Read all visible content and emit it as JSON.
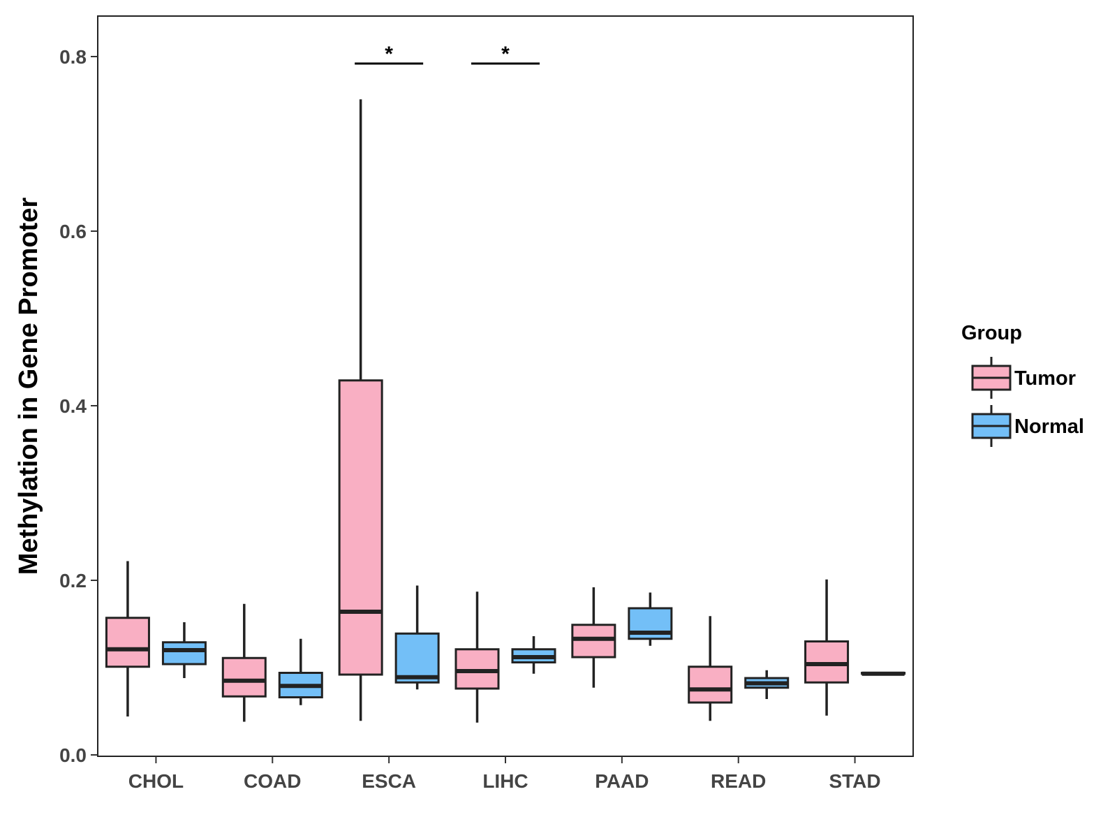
{
  "chart_data": {
    "type": "boxplot",
    "ylabel": "Methylation in Gene Promoter",
    "xlabel": "",
    "ylim": [
      0,
      0.85
    ],
    "yticks": [
      0.0,
      0.2,
      0.4,
      0.6,
      0.8
    ],
    "ytick_labels": [
      "0.0",
      "0.2",
      "0.4",
      "0.6",
      "0.8"
    ],
    "categories": [
      "CHOL",
      "COAD",
      "ESCA",
      "LIHC",
      "PAAD",
      "READ",
      "STAD"
    ],
    "legend": {
      "title": "Group",
      "position": "right"
    },
    "series": [
      {
        "name": "Tumor",
        "color": "#F9AFC3",
        "boxes": [
          {
            "min": 0.044,
            "q1": 0.101,
            "median": 0.121,
            "q3": 0.157,
            "max": 0.222
          },
          {
            "min": 0.038,
            "q1": 0.067,
            "median": 0.085,
            "q3": 0.111,
            "max": 0.173
          },
          {
            "min": 0.039,
            "q1": 0.092,
            "median": 0.164,
            "q3": 0.429,
            "max": 0.751
          },
          {
            "min": 0.037,
            "q1": 0.076,
            "median": 0.096,
            "q3": 0.121,
            "max": 0.187
          },
          {
            "min": 0.077,
            "q1": 0.112,
            "median": 0.133,
            "q3": 0.149,
            "max": 0.192
          },
          {
            "min": 0.039,
            "q1": 0.06,
            "median": 0.075,
            "q3": 0.101,
            "max": 0.159
          },
          {
            "min": 0.045,
            "q1": 0.083,
            "median": 0.104,
            "q3": 0.13,
            "max": 0.201
          }
        ]
      },
      {
        "name": "Normal",
        "color": "#73BFF7",
        "boxes": [
          {
            "min": 0.088,
            "q1": 0.104,
            "median": 0.12,
            "q3": 0.129,
            "max": 0.152
          },
          {
            "min": 0.057,
            "q1": 0.066,
            "median": 0.079,
            "q3": 0.094,
            "max": 0.133
          },
          {
            "min": 0.075,
            "q1": 0.083,
            "median": 0.089,
            "q3": 0.139,
            "max": 0.194
          },
          {
            "min": 0.093,
            "q1": 0.106,
            "median": 0.112,
            "q3": 0.121,
            "max": 0.136
          },
          {
            "min": 0.125,
            "q1": 0.133,
            "median": 0.14,
            "q3": 0.168,
            "max": 0.186
          },
          {
            "min": 0.064,
            "q1": 0.077,
            "median": 0.082,
            "q3": 0.088,
            "max": 0.097
          },
          {
            "min": 0.093,
            "q1": 0.093,
            "median": 0.093,
            "q3": 0.094,
            "max": 0.094
          }
        ]
      }
    ],
    "annotations": [
      {
        "category": "ESCA",
        "text": "*",
        "y": 0.792
      },
      {
        "category": "LIHC",
        "text": "*",
        "y": 0.792
      }
    ]
  }
}
